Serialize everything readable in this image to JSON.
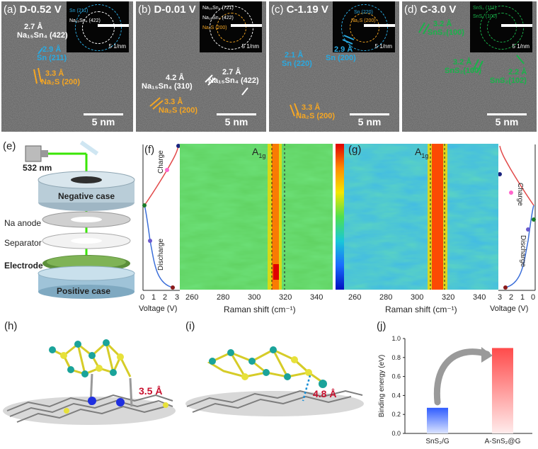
{
  "panels": {
    "a": {
      "label": "(a)",
      "condition": "D-0.52 V",
      "inset_rings": [
        "Sn (211)",
        "Na₁₅Sn₄ (422)"
      ],
      "inset_scale": "5 1/nm",
      "annotations": [
        "2.7 Å",
        "Na₁₅Sn₄ (422)",
        "2.9 Å",
        "Sn (211)",
        "3.3 Å",
        "Na₂S (200)"
      ],
      "scale": "5 nm"
    },
    "b": {
      "label": "(b)",
      "condition": "D-0.01 V",
      "inset_rings": [
        "Na₁₅Sn₄ (721)",
        "Na₁₅Sn₄ (422)",
        "Na₂S (200)"
      ],
      "inset_scale": "5 1/nm",
      "annotations": [
        "4.2 Å",
        "Na₁₅Sn₄ (310)",
        "2.7 Å",
        "Na₁₅Sn₄ (422)",
        "3.3 Å",
        "Na₂S (200)"
      ],
      "scale": "5 nm"
    },
    "c": {
      "label": "(c)",
      "condition": "C-1.19 V",
      "inset_rings": [
        "Sn (220)",
        "Na₂S (200)"
      ],
      "inset_scale": "5 1/nm",
      "annotations": [
        "2.1 Å",
        "Sn (220)",
        "2.9 Å",
        "Sn (200)",
        "3.3 Å",
        "Na₂S (200)"
      ],
      "scale": "5 nm"
    },
    "d": {
      "label": "(d)",
      "condition": "C-3.0 V",
      "inset_rings": [
        "SnS₂ (111)",
        "SnS₂ (100)"
      ],
      "inset_scale": "5 1/nm",
      "annotations": [
        "3.2 Å",
        "SnS₂(100)",
        "3.2 Å",
        "SnS₂(100)",
        "2.2 Å",
        "SnS₂(102)"
      ],
      "scale": "5 nm"
    },
    "e": {
      "label": "(e)",
      "laser": "532 nm",
      "parts": [
        "Negative case",
        "Na anode",
        "Separator",
        "Electrode",
        "Positive case"
      ]
    },
    "f": {
      "label": "(f)",
      "peak": "A",
      "peak_sub": "1g",
      "charge": "Charge",
      "discharge": "Discharge"
    },
    "g": {
      "label": "(g)",
      "peak": "A",
      "peak_sub": "1g",
      "charge": "Charge",
      "discharge": "Discharge"
    },
    "h": {
      "label": "(h)",
      "distance": "3.5 Å"
    },
    "i": {
      "label": "(i)",
      "distance": "4.8 Å"
    },
    "j": {
      "label": "(j)"
    }
  },
  "raman_axes": {
    "xlabel": "Raman shift (cm⁻¹)",
    "xticks": [
      "260",
      "280",
      "300",
      "320",
      "340"
    ],
    "voltage_label": "Voltage (V)",
    "voltage_ticks_f": [
      "0",
      "1",
      "2",
      "3"
    ],
    "voltage_ticks_g": [
      "3",
      "2",
      "1",
      "0"
    ]
  },
  "chart_data": {
    "type": "bar",
    "categories": [
      "SnS₂/G",
      "A-SnS₂@G"
    ],
    "values": [
      0.27,
      0.9
    ],
    "ylabel": "Binding energy (eV)",
    "ylim": [
      0.0,
      1.0
    ],
    "yticks": [
      "0.0",
      "0.2",
      "0.4",
      "0.6",
      "0.8",
      "1.0"
    ],
    "colors": [
      "#3f6fff",
      "#ff6a6a"
    ]
  },
  "colors": {
    "blue": "#2aa9e0",
    "orange": "#f5a623",
    "green": "#19b34a",
    "red": "#c8102e"
  }
}
